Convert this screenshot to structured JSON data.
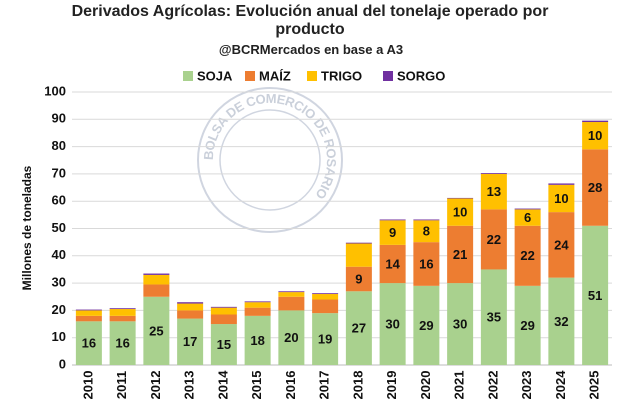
{
  "chart_data": {
    "type": "stacked_bar",
    "title": "Derivados Agrícolas: Evolución anual del tonelaje operado por producto",
    "subtitle": "@BCRMercados en base a A3",
    "watermark": "BOLSA DE COMERCIO DE ROSARIO",
    "y_label": "Millones de toneladas",
    "categories": [
      "2010",
      "2011",
      "2012",
      "2013",
      "2014",
      "2015",
      "2016",
      "2017",
      "2018",
      "2019",
      "2020",
      "2021",
      "2022",
      "2023",
      "2024",
      "2025"
    ],
    "series": [
      {
        "name": "SOJA",
        "color": "#a9d18e",
        "values": [
          16,
          16,
          25,
          17,
          15,
          18,
          20,
          19,
          27,
          30,
          29,
          30,
          35,
          29,
          32,
          51
        ],
        "value_labels": [
          "16",
          "16",
          "25",
          "17",
          "15",
          "18",
          "20",
          "19",
          "27",
          "30",
          "29",
          "30",
          "35",
          "29",
          "32",
          "51"
        ]
      },
      {
        "name": "MAÍZ",
        "color": "#ed7d31",
        "values": [
          2,
          2,
          4.5,
          3,
          3.5,
          3,
          5,
          5,
          9,
          14,
          16,
          21,
          22,
          22,
          24,
          28
        ],
        "value_labels": [
          null,
          null,
          null,
          null,
          null,
          null,
          null,
          null,
          "9",
          "14",
          "16",
          "21",
          "22",
          "22",
          "24",
          "28"
        ]
      },
      {
        "name": "TRIGO",
        "color": "#ffc000",
        "values": [
          2,
          2.5,
          3.5,
          2.5,
          2.5,
          2,
          1.7,
          2,
          8.5,
          9,
          8,
          10,
          13,
          6,
          10,
          10
        ],
        "value_labels": [
          null,
          null,
          null,
          null,
          null,
          null,
          null,
          null,
          null,
          "9",
          "8",
          "10",
          "13",
          "6",
          "10",
          "10"
        ]
      },
      {
        "name": "SORGO",
        "color": "#7030a0",
        "values": [
          0.3,
          0.3,
          0.5,
          0.5,
          0.3,
          0.3,
          0.3,
          0.3,
          0.3,
          0.3,
          0.3,
          0.2,
          0.3,
          0.3,
          0.5,
          0.5
        ]
      }
    ],
    "ylim": [
      0,
      100
    ],
    "yticks": [
      0,
      10,
      20,
      30,
      40,
      50,
      60,
      70,
      80,
      90,
      100
    ],
    "grid": true
  }
}
